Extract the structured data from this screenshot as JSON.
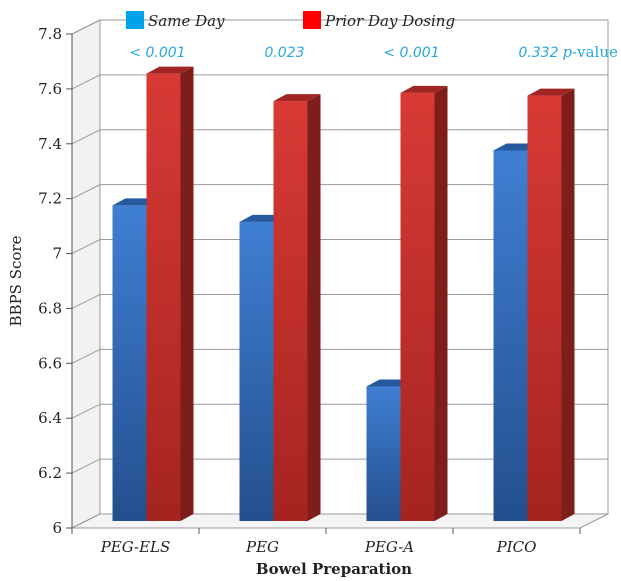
{
  "chart_data": {
    "type": "bar",
    "categories": [
      "PEG-ELS",
      "PEG",
      "PEG-A",
      "PICO"
    ],
    "series": [
      {
        "name": "Same Day",
        "color": "#2f6fc4",
        "values": [
          7.15,
          7.09,
          6.49,
          7.35
        ]
      },
      {
        "name": "Prior Day Dosing",
        "color": "#c9302c",
        "values": [
          7.63,
          7.53,
          7.56,
          7.55
        ]
      }
    ],
    "p_values": [
      "< 0.001",
      "0.023",
      "< 0.001",
      "0.332"
    ],
    "p_value_label_prefix": "p",
    "p_value_label_suffix": "-value",
    "p_value_color": "#29a8e0",
    "xlabel": "Bowel Preparation",
    "ylabel": "BBPS Score",
    "ylim": [
      6,
      7.8
    ],
    "yticks": [
      "6",
      "6.2",
      "6.4",
      "6.6",
      "6.8",
      "7",
      "7.2",
      "7.4",
      "7.6",
      "7.8"
    ],
    "grid": true,
    "legend_position": "top",
    "legend_colors": [
      "#00a2e8",
      "#ff0000"
    ]
  }
}
